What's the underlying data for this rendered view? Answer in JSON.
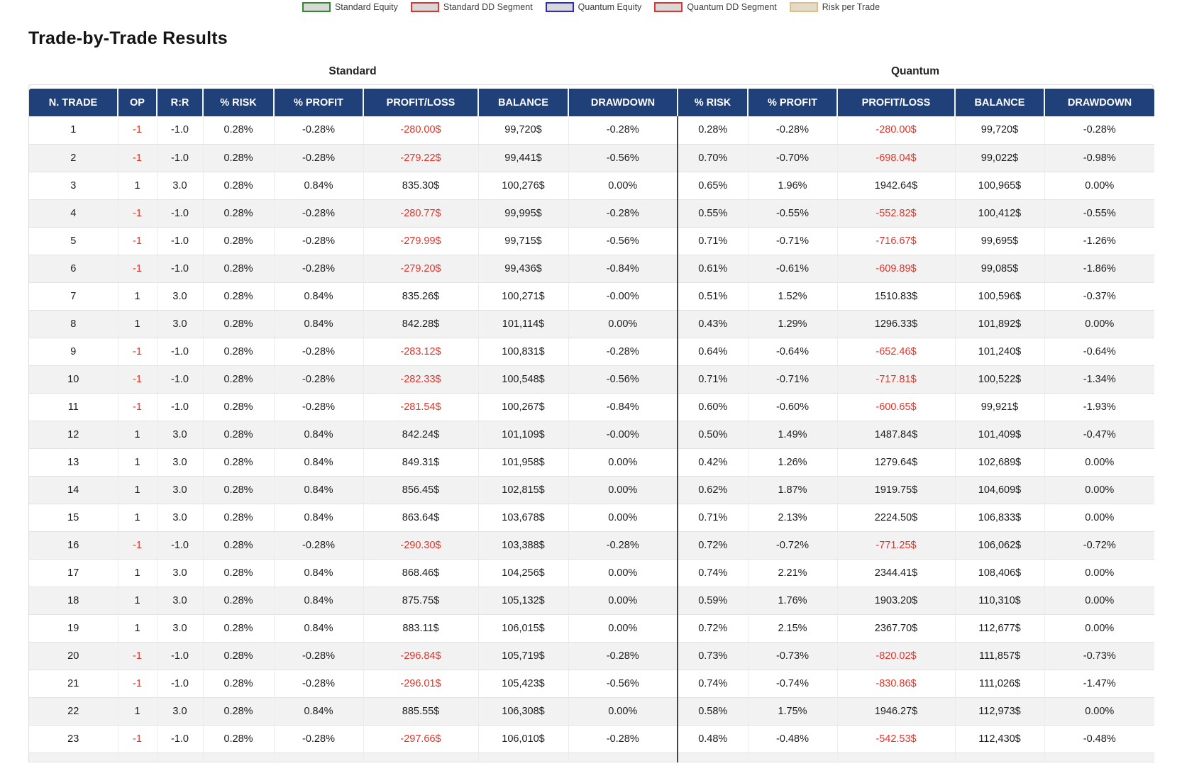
{
  "title": "Trade-by-Trade Results",
  "legend": {
    "items": [
      {
        "label": "Standard Equity",
        "border_color": "#2e8b2e",
        "fill_color": "#d8d8d8"
      },
      {
        "label": "Standard DD Segment",
        "border_color": "#e23333",
        "fill_color": "#d8d8d8"
      },
      {
        "label": "Quantum Equity",
        "border_color": "#2c2ccd",
        "fill_color": "#d8d8d8"
      },
      {
        "label": "Quantum DD Segment",
        "border_color": "#e23333",
        "fill_color": "#d8d8d8"
      },
      {
        "label": "Risk per Trade",
        "border_color": "#e0bd82",
        "fill_color": "#e2dbc9"
      }
    ]
  },
  "colors": {
    "header_bg": "#20407a",
    "header_text": "#ffffff",
    "negative_text": "#e43328",
    "row_alt_bg": "#f2f2f2",
    "group_divider": "#454545"
  },
  "table": {
    "groups": [
      {
        "label": "Standard"
      },
      {
        "label": "Quantum"
      }
    ],
    "columns": [
      "N. TRADE",
      "OP",
      "R:R",
      "% RISK",
      "% PROFIT",
      "PROFIT/LOSS",
      "BALANCE",
      "DRAWDOWN",
      "% RISK",
      "% PROFIT",
      "PROFIT/LOSS",
      "BALANCE",
      "DRAWDOWN"
    ],
    "rows": [
      [
        "1",
        "-1",
        "-1.0",
        "0.28%",
        "-0.28%",
        "-280.00$",
        "99,720$",
        "-0.28%",
        "0.28%",
        "-0.28%",
        "-280.00$",
        "99,720$",
        "-0.28%"
      ],
      [
        "2",
        "-1",
        "-1.0",
        "0.28%",
        "-0.28%",
        "-279.22$",
        "99,441$",
        "-0.56%",
        "0.70%",
        "-0.70%",
        "-698.04$",
        "99,022$",
        "-0.98%"
      ],
      [
        "3",
        "1",
        "3.0",
        "0.28%",
        "0.84%",
        "835.30$",
        "100,276$",
        "0.00%",
        "0.65%",
        "1.96%",
        "1942.64$",
        "100,965$",
        "0.00%"
      ],
      [
        "4",
        "-1",
        "-1.0",
        "0.28%",
        "-0.28%",
        "-280.77$",
        "99,995$",
        "-0.28%",
        "0.55%",
        "-0.55%",
        "-552.82$",
        "100,412$",
        "-0.55%"
      ],
      [
        "5",
        "-1",
        "-1.0",
        "0.28%",
        "-0.28%",
        "-279.99$",
        "99,715$",
        "-0.56%",
        "0.71%",
        "-0.71%",
        "-716.67$",
        "99,695$",
        "-1.26%"
      ],
      [
        "6",
        "-1",
        "-1.0",
        "0.28%",
        "-0.28%",
        "-279.20$",
        "99,436$",
        "-0.84%",
        "0.61%",
        "-0.61%",
        "-609.89$",
        "99,085$",
        "-1.86%"
      ],
      [
        "7",
        "1",
        "3.0",
        "0.28%",
        "0.84%",
        "835.26$",
        "100,271$",
        "-0.00%",
        "0.51%",
        "1.52%",
        "1510.83$",
        "100,596$",
        "-0.37%"
      ],
      [
        "8",
        "1",
        "3.0",
        "0.28%",
        "0.84%",
        "842.28$",
        "101,114$",
        "0.00%",
        "0.43%",
        "1.29%",
        "1296.33$",
        "101,892$",
        "0.00%"
      ],
      [
        "9",
        "-1",
        "-1.0",
        "0.28%",
        "-0.28%",
        "-283.12$",
        "100,831$",
        "-0.28%",
        "0.64%",
        "-0.64%",
        "-652.46$",
        "101,240$",
        "-0.64%"
      ],
      [
        "10",
        "-1",
        "-1.0",
        "0.28%",
        "-0.28%",
        "-282.33$",
        "100,548$",
        "-0.56%",
        "0.71%",
        "-0.71%",
        "-717.81$",
        "100,522$",
        "-1.34%"
      ],
      [
        "11",
        "-1",
        "-1.0",
        "0.28%",
        "-0.28%",
        "-281.54$",
        "100,267$",
        "-0.84%",
        "0.60%",
        "-0.60%",
        "-600.65$",
        "99,921$",
        "-1.93%"
      ],
      [
        "12",
        "1",
        "3.0",
        "0.28%",
        "0.84%",
        "842.24$",
        "101,109$",
        "-0.00%",
        "0.50%",
        "1.49%",
        "1487.84$",
        "101,409$",
        "-0.47%"
      ],
      [
        "13",
        "1",
        "3.0",
        "0.28%",
        "0.84%",
        "849.31$",
        "101,958$",
        "0.00%",
        "0.42%",
        "1.26%",
        "1279.64$",
        "102,689$",
        "0.00%"
      ],
      [
        "14",
        "1",
        "3.0",
        "0.28%",
        "0.84%",
        "856.45$",
        "102,815$",
        "0.00%",
        "0.62%",
        "1.87%",
        "1919.75$",
        "104,609$",
        "0.00%"
      ],
      [
        "15",
        "1",
        "3.0",
        "0.28%",
        "0.84%",
        "863.64$",
        "103,678$",
        "0.00%",
        "0.71%",
        "2.13%",
        "2224.50$",
        "106,833$",
        "0.00%"
      ],
      [
        "16",
        "-1",
        "-1.0",
        "0.28%",
        "-0.28%",
        "-290.30$",
        "103,388$",
        "-0.28%",
        "0.72%",
        "-0.72%",
        "-771.25$",
        "106,062$",
        "-0.72%"
      ],
      [
        "17",
        "1",
        "3.0",
        "0.28%",
        "0.84%",
        "868.46$",
        "104,256$",
        "0.00%",
        "0.74%",
        "2.21%",
        "2344.41$",
        "108,406$",
        "0.00%"
      ],
      [
        "18",
        "1",
        "3.0",
        "0.28%",
        "0.84%",
        "875.75$",
        "105,132$",
        "0.00%",
        "0.59%",
        "1.76%",
        "1903.20$",
        "110,310$",
        "0.00%"
      ],
      [
        "19",
        "1",
        "3.0",
        "0.28%",
        "0.84%",
        "883.11$",
        "106,015$",
        "0.00%",
        "0.72%",
        "2.15%",
        "2367.70$",
        "112,677$",
        "0.00%"
      ],
      [
        "20",
        "-1",
        "-1.0",
        "0.28%",
        "-0.28%",
        "-296.84$",
        "105,719$",
        "-0.28%",
        "0.73%",
        "-0.73%",
        "-820.02$",
        "111,857$",
        "-0.73%"
      ],
      [
        "21",
        "-1",
        "-1.0",
        "0.28%",
        "-0.28%",
        "-296.01$",
        "105,423$",
        "-0.56%",
        "0.74%",
        "-0.74%",
        "-830.86$",
        "111,026$",
        "-1.47%"
      ],
      [
        "22",
        "1",
        "3.0",
        "0.28%",
        "0.84%",
        "885.55$",
        "106,308$",
        "0.00%",
        "0.58%",
        "1.75%",
        "1946.27$",
        "112,973$",
        "0.00%"
      ],
      [
        "23",
        "-1",
        "-1.0",
        "0.28%",
        "-0.28%",
        "-297.66$",
        "106,010$",
        "-0.28%",
        "0.48%",
        "-0.48%",
        "-542.53$",
        "112,430$",
        "-0.48%"
      ]
    ]
  }
}
